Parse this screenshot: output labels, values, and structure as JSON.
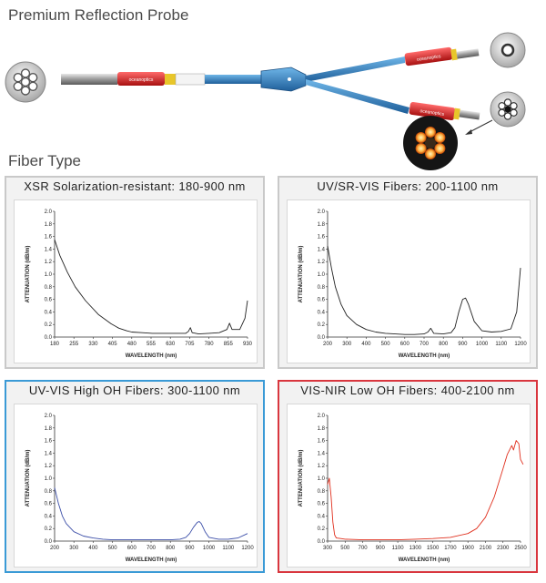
{
  "header": {
    "probe_title": "Premium Reflection Probe",
    "probe_brand": "oceanoptics",
    "fiber_type_title": "Fiber Type"
  },
  "colors": {
    "panel_gray": "#c9c9c9",
    "panel_blue": "#3a9ad6",
    "panel_red": "#d9363e"
  },
  "chart_data": [
    {
      "type": "line",
      "title": "XSR Solarization-resistant: 180-900 nm",
      "xlabel": "WAVELENGTH (nm)",
      "ylabel": "ATTENUATION (dB/m)",
      "border_color": "#c9c9c9",
      "line_color": "#222222",
      "xlim": [
        180,
        930
      ],
      "ylim": [
        0,
        2.0
      ],
      "xticks": [
        180,
        255,
        330,
        405,
        480,
        555,
        630,
        705,
        780,
        855,
        930
      ],
      "yticks": [
        0,
        0.2,
        0.4,
        0.6,
        0.8,
        1.0,
        1.2,
        1.4,
        1.6,
        1.8,
        2.0
      ],
      "series": [
        {
          "x": [
            180,
            200,
            230,
            260,
            300,
            350,
            400,
            430,
            460,
            480,
            520,
            560,
            600,
            650,
            690,
            700,
            708,
            715,
            740,
            780,
            820,
            850,
            860,
            870,
            900,
            920,
            930
          ],
          "y": [
            1.55,
            1.3,
            1.03,
            0.8,
            0.58,
            0.36,
            0.21,
            0.14,
            0.1,
            0.08,
            0.07,
            0.06,
            0.06,
            0.06,
            0.06,
            0.09,
            0.15,
            0.07,
            0.05,
            0.06,
            0.07,
            0.12,
            0.22,
            0.12,
            0.12,
            0.3,
            0.58
          ]
        }
      ]
    },
    {
      "type": "line",
      "title": "UV/SR-VIS Fibers: 200-1100 nm",
      "xlabel": "WAVELENGTH (nm)",
      "ylabel": "ATTENUATION (dB/m)",
      "border_color": "#c9c9c9",
      "line_color": "#222222",
      "xlim": [
        200,
        1200
      ],
      "ylim": [
        0,
        2.0
      ],
      "xticks": [
        200,
        300,
        400,
        500,
        600,
        700,
        800,
        900,
        1000,
        1100,
        1200
      ],
      "yticks": [
        0,
        0.2,
        0.4,
        0.6,
        0.8,
        1.0,
        1.2,
        1.4,
        1.6,
        1.8,
        2.0
      ],
      "series": [
        {
          "x": [
            200,
            220,
            240,
            270,
            300,
            350,
            400,
            450,
            500,
            550,
            600,
            650,
            700,
            720,
            735,
            750,
            800,
            840,
            860,
            880,
            900,
            915,
            930,
            960,
            1000,
            1050,
            1100,
            1150,
            1180,
            1200
          ],
          "y": [
            1.45,
            1.1,
            0.8,
            0.52,
            0.34,
            0.2,
            0.12,
            0.08,
            0.06,
            0.05,
            0.04,
            0.04,
            0.05,
            0.08,
            0.14,
            0.06,
            0.05,
            0.07,
            0.15,
            0.4,
            0.6,
            0.62,
            0.52,
            0.25,
            0.1,
            0.08,
            0.09,
            0.13,
            0.4,
            1.1
          ]
        }
      ]
    },
    {
      "type": "line",
      "title": "UV-VIS High OH Fibers: 300-1100 nm",
      "xlabel": "WAVELENGTH (nm)",
      "ylabel": "ATTENUATION (dB/m)",
      "border_color": "#3a9ad6",
      "line_color": "#3b4ea8",
      "xlim": [
        200,
        1200
      ],
      "ylim": [
        0,
        2.0
      ],
      "xticks": [
        200,
        300,
        400,
        500,
        600,
        700,
        800,
        900,
        1000,
        1100,
        1200
      ],
      "yticks": [
        0,
        0.2,
        0.4,
        0.6,
        0.8,
        1.0,
        1.2,
        1.4,
        1.6,
        1.8,
        2.0
      ],
      "series": [
        {
          "x": [
            200,
            220,
            240,
            260,
            300,
            350,
            400,
            450,
            500,
            600,
            700,
            800,
            850,
            880,
            900,
            920,
            940,
            950,
            960,
            980,
            1000,
            1050,
            1100,
            1150,
            1200
          ],
          "y": [
            0.85,
            0.6,
            0.4,
            0.28,
            0.15,
            0.08,
            0.05,
            0.03,
            0.02,
            0.02,
            0.02,
            0.02,
            0.03,
            0.06,
            0.12,
            0.22,
            0.3,
            0.31,
            0.28,
            0.15,
            0.06,
            0.03,
            0.03,
            0.05,
            0.12
          ]
        }
      ]
    },
    {
      "type": "line",
      "title": "VIS-NIR Low OH Fibers: 400-2100 nm",
      "xlabel": "WAVELENGTH (nm)",
      "ylabel": "ATTENUATION (dB/m)",
      "border_color": "#d9363e",
      "line_color": "#e0301e",
      "xlim": [
        300,
        2500
      ],
      "ylim": [
        0,
        2.0
      ],
      "xticks": [
        300,
        500,
        700,
        900,
        1100,
        1300,
        1500,
        1700,
        1900,
        2100,
        2300,
        2500
      ],
      "yticks": [
        0,
        0.2,
        0.4,
        0.6,
        0.8,
        1.0,
        1.2,
        1.4,
        1.6,
        1.8,
        2.0
      ],
      "series": [
        {
          "x": [
            300,
            320,
            340,
            360,
            380,
            400,
            450,
            500,
            700,
            900,
            1100,
            1300,
            1500,
            1700,
            1900,
            2000,
            2100,
            2200,
            2300,
            2350,
            2400,
            2420,
            2450,
            2480,
            2500,
            2530
          ],
          "y": [
            0.9,
            1.0,
            0.7,
            0.3,
            0.1,
            0.05,
            0.04,
            0.03,
            0.02,
            0.02,
            0.02,
            0.03,
            0.04,
            0.06,
            0.12,
            0.2,
            0.38,
            0.7,
            1.15,
            1.38,
            1.52,
            1.45,
            1.6,
            1.55,
            1.3,
            1.22
          ]
        }
      ]
    }
  ]
}
